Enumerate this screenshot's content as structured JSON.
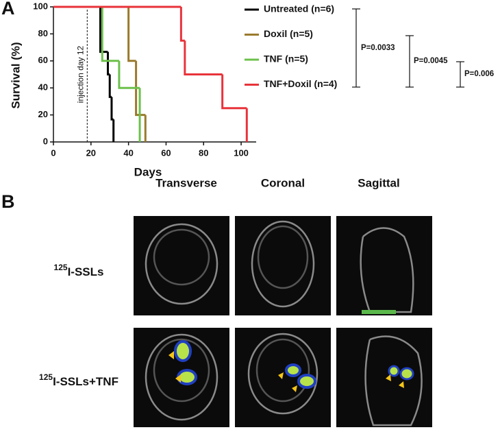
{
  "chart_data": {
    "type": "step",
    "y_label": "Survival (%)",
    "x_label": "Days",
    "xlim": [
      0,
      108
    ],
    "ylim": [
      0,
      100
    ],
    "xticks": [
      0,
      20,
      40,
      60,
      80,
      100
    ],
    "yticks": [
      0,
      20,
      40,
      60,
      80,
      100
    ],
    "series": [
      {
        "name": "Untreated (n=6)",
        "color": "#000000",
        "x": [
          0,
          25,
          29,
          30,
          31,
          32
        ],
        "values": [
          100,
          66.7,
          50,
          33.3,
          16.7,
          0
        ]
      },
      {
        "name": "Doxil (n=5)",
        "color": "#9a7a2c",
        "x": [
          0,
          40,
          44,
          49
        ],
        "values": [
          100,
          60,
          20,
          0
        ]
      },
      {
        "name": "TNF (n=5)",
        "color": "#6cc04a",
        "x": [
          0,
          26,
          35,
          46
        ],
        "values": [
          100,
          60,
          40,
          0
        ]
      },
      {
        "name": "TNF+Doxil (n=4)",
        "color": "#e8333a",
        "x": [
          0,
          68,
          70,
          90,
          103
        ],
        "values": [
          100,
          75,
          50,
          25,
          0
        ]
      }
    ],
    "annotations": [
      {
        "text": "injection day 12",
        "x": 18
      }
    ],
    "p_values": [
      "P=0.0033",
      "P=0.0045",
      "P=0.006"
    ]
  },
  "panel_labels": [
    "A",
    "B"
  ],
  "imaging": {
    "columns": [
      "Transverse",
      "Coronal",
      "Sagittal"
    ],
    "rows": [
      {
        "isotope": "125",
        "label": "I-SSLs"
      },
      {
        "isotope": "125",
        "label": "I-SSLs+TNF"
      }
    ]
  }
}
